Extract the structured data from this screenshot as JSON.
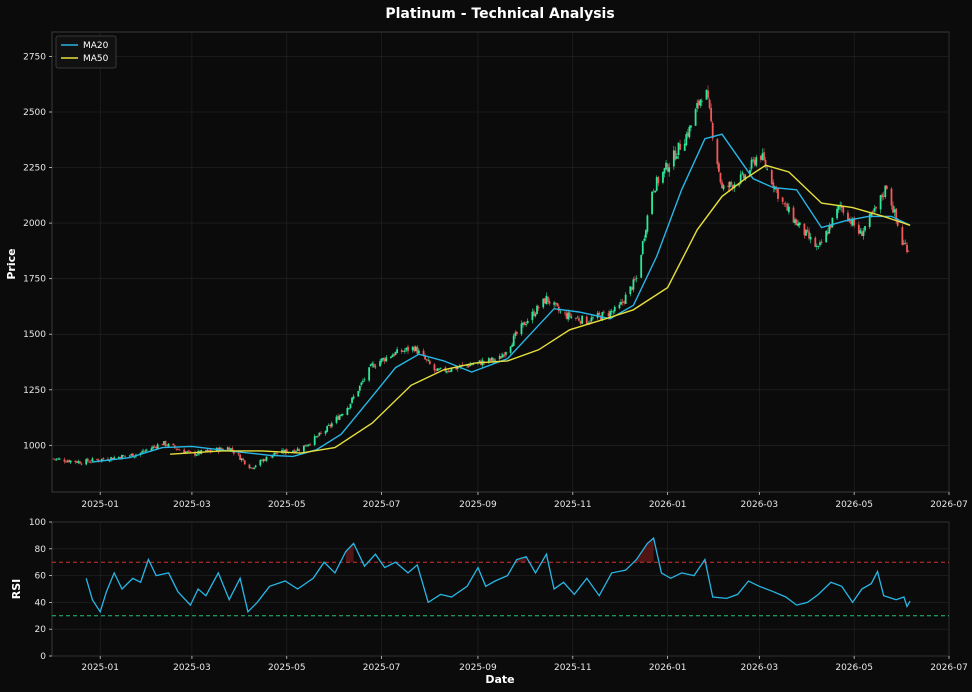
{
  "chart_data": [
    {
      "type": "candlestick",
      "title": "Platinum - Technical Analysis",
      "xlabel": "",
      "ylabel": "Price",
      "ylim": [
        790,
        2860
      ],
      "yticks": [
        1000,
        1250,
        1500,
        1750,
        2000,
        2250,
        2500,
        2750
      ],
      "grid": true,
      "legend_position": "top-left",
      "x_start": "2024-12-01",
      "x_end": "2026-07-01",
      "xticks": [
        "2025-01",
        "2025-03",
        "2025-05",
        "2025-07",
        "2025-09",
        "2025-11",
        "2026-01",
        "2026-03",
        "2026-05",
        "2026-07"
      ],
      "xtick_dates": [
        "2025-01-01",
        "2025-03-01",
        "2025-05-01",
        "2025-07-01",
        "2025-09-01",
        "2025-11-01",
        "2026-01-01",
        "2026-03-01",
        "2026-05-01",
        "2026-07-01"
      ],
      "price_anchors": [
        [
          "2024-12-01",
          940
        ],
        [
          "2024-12-20",
          925
        ],
        [
          "2025-01-05",
          940
        ],
        [
          "2025-01-25",
          960
        ],
        [
          "2025-02-10",
          1010
        ],
        [
          "2025-03-01",
          960
        ],
        [
          "2025-03-25",
          990
        ],
        [
          "2025-04-08",
          900
        ],
        [
          "2025-04-22",
          960
        ],
        [
          "2025-05-10",
          985
        ],
        [
          "2025-05-25",
          1060
        ],
        [
          "2025-06-10",
          1180
        ],
        [
          "2025-06-25",
          1360
        ],
        [
          "2025-07-08",
          1410
        ],
        [
          "2025-07-22",
          1440
        ],
        [
          "2025-08-05",
          1330
        ],
        [
          "2025-08-25",
          1360
        ],
        [
          "2025-09-15",
          1390
        ],
        [
          "2025-10-01",
          1550
        ],
        [
          "2025-10-15",
          1660
        ],
        [
          "2025-10-25",
          1590
        ],
        [
          "2025-11-10",
          1560
        ],
        [
          "2025-11-30",
          1610
        ],
        [
          "2025-12-12",
          1750
        ],
        [
          "2025-12-22",
          2150
        ],
        [
          "2026-01-05",
          2300
        ],
        [
          "2026-01-15",
          2420
        ],
        [
          "2026-01-25",
          2620
        ],
        [
          "2026-02-05",
          2150
        ],
        [
          "2026-02-20",
          2210
        ],
        [
          "2026-03-01",
          2320
        ],
        [
          "2026-03-15",
          2100
        ],
        [
          "2026-03-25",
          2000
        ],
        [
          "2026-04-08",
          1880
        ],
        [
          "2026-04-22",
          2080
        ],
        [
          "2026-05-05",
          1950
        ],
        [
          "2026-05-15",
          2060
        ],
        [
          "2026-05-22",
          2170
        ],
        [
          "2026-06-01",
          1910
        ],
        [
          "2026-06-06",
          1880
        ]
      ],
      "series": [
        {
          "name": "MA20",
          "color": "#29b6e6",
          "values": [
            [
              "2024-12-27",
              925
            ],
            [
              "2025-01-20",
              945
            ],
            [
              "2025-02-10",
              990
            ],
            [
              "2025-03-01",
              995
            ],
            [
              "2025-03-25",
              975
            ],
            [
              "2025-04-20",
              955
            ],
            [
              "2025-05-05",
              950
            ],
            [
              "2025-05-20",
              980
            ],
            [
              "2025-06-05",
              1050
            ],
            [
              "2025-06-25",
              1220
            ],
            [
              "2025-07-10",
              1350
            ],
            [
              "2025-07-25",
              1410
            ],
            [
              "2025-08-10",
              1380
            ],
            [
              "2025-08-28",
              1330
            ],
            [
              "2025-09-20",
              1390
            ],
            [
              "2025-10-10",
              1540
            ],
            [
              "2025-10-20",
              1615
            ],
            [
              "2025-11-05",
              1600
            ],
            [
              "2025-11-25",
              1570
            ],
            [
              "2025-12-10",
              1630
            ],
            [
              "2025-12-25",
              1850
            ],
            [
              "2026-01-10",
              2150
            ],
            [
              "2026-01-25",
              2380
            ],
            [
              "2026-02-05",
              2400
            ],
            [
              "2026-02-25",
              2200
            ],
            [
              "2026-03-10",
              2160
            ],
            [
              "2026-03-25",
              2150
            ],
            [
              "2026-04-10",
              1980
            ],
            [
              "2026-04-25",
              2010
            ],
            [
              "2026-05-10",
              2030
            ],
            [
              "2026-05-25",
              2030
            ],
            [
              "2026-06-06",
              1990
            ]
          ]
        },
        {
          "name": "MA50",
          "color": "#e6df3c",
          "values": [
            [
              "2025-02-15",
              960
            ],
            [
              "2025-03-20",
              975
            ],
            [
              "2025-04-15",
              975
            ],
            [
              "2025-05-10",
              965
            ],
            [
              "2025-06-01",
              990
            ],
            [
              "2025-06-25",
              1100
            ],
            [
              "2025-07-20",
              1270
            ],
            [
              "2025-08-10",
              1340
            ],
            [
              "2025-08-30",
              1370
            ],
            [
              "2025-09-20",
              1380
            ],
            [
              "2025-10-10",
              1430
            ],
            [
              "2025-10-30",
              1520
            ],
            [
              "2025-11-20",
              1565
            ],
            [
              "2025-12-10",
              1610
            ],
            [
              "2026-01-01",
              1710
            ],
            [
              "2026-01-20",
              1970
            ],
            [
              "2026-02-05",
              2120
            ],
            [
              "2026-02-20",
              2200
            ],
            [
              "2026-03-05",
              2260
            ],
            [
              "2026-03-20",
              2230
            ],
            [
              "2026-04-10",
              2090
            ],
            [
              "2026-04-30",
              2070
            ],
            [
              "2026-05-20",
              2030
            ],
            [
              "2026-06-06",
              1990
            ]
          ]
        }
      ]
    },
    {
      "type": "line",
      "title": "",
      "xlabel": "Date",
      "ylabel": "RSI",
      "ylim": [
        0,
        100
      ],
      "yticks": [
        0,
        20,
        40,
        60,
        80,
        100
      ],
      "grid": true,
      "reference_lines": [
        {
          "value": 70,
          "color": "#cc3333"
        },
        {
          "value": 30,
          "color": "#27c07a"
        }
      ],
      "xticks": [
        "2025-01",
        "2025-03",
        "2025-05",
        "2025-07",
        "2025-09",
        "2025-11",
        "2026-01",
        "2026-03",
        "2026-05",
        "2026-07"
      ],
      "xtick_dates": [
        "2025-01-01",
        "2025-03-01",
        "2025-05-01",
        "2025-07-01",
        "2025-09-01",
        "2025-11-01",
        "2026-01-01",
        "2026-03-01",
        "2026-05-01",
        "2026-07-01"
      ],
      "series": [
        {
          "name": "RSI",
          "color": "#29b6e6",
          "values": [
            [
              "2024-12-23",
              58
            ],
            [
              "2024-12-27",
              42
            ],
            [
              "2025-01-01",
              33
            ],
            [
              "2025-01-05",
              48
            ],
            [
              "2025-01-10",
              62
            ],
            [
              "2025-01-15",
              50
            ],
            [
              "2025-01-22",
              58
            ],
            [
              "2025-01-27",
              55
            ],
            [
              "2025-02-01",
              72
            ],
            [
              "2025-02-06",
              60
            ],
            [
              "2025-02-14",
              62
            ],
            [
              "2025-02-20",
              48
            ],
            [
              "2025-02-28",
              38
            ],
            [
              "2025-03-05",
              50
            ],
            [
              "2025-03-10",
              45
            ],
            [
              "2025-03-18",
              62
            ],
            [
              "2025-03-25",
              42
            ],
            [
              "2025-04-01",
              58
            ],
            [
              "2025-04-06",
              33
            ],
            [
              "2025-04-12",
              40
            ],
            [
              "2025-04-20",
              52
            ],
            [
              "2025-04-30",
              56
            ],
            [
              "2025-05-08",
              50
            ],
            [
              "2025-05-18",
              58
            ],
            [
              "2025-05-25",
              70
            ],
            [
              "2025-06-01",
              62
            ],
            [
              "2025-06-08",
              78
            ],
            [
              "2025-06-13",
              84
            ],
            [
              "2025-06-20",
              67
            ],
            [
              "2025-06-27",
              76
            ],
            [
              "2025-07-03",
              66
            ],
            [
              "2025-07-10",
              70
            ],
            [
              "2025-07-18",
              62
            ],
            [
              "2025-07-24",
              68
            ],
            [
              "2025-07-31",
              40
            ],
            [
              "2025-08-08",
              46
            ],
            [
              "2025-08-15",
              44
            ],
            [
              "2025-08-25",
              52
            ],
            [
              "2025-09-01",
              66
            ],
            [
              "2025-09-06",
              52
            ],
            [
              "2025-09-12",
              56
            ],
            [
              "2025-09-20",
              60
            ],
            [
              "2025-09-26",
              72
            ],
            [
              "2025-10-02",
              74
            ],
            [
              "2025-10-08",
              62
            ],
            [
              "2025-10-15",
              76
            ],
            [
              "2025-10-20",
              50
            ],
            [
              "2025-10-26",
              55
            ],
            [
              "2025-11-02",
              46
            ],
            [
              "2025-11-10",
              58
            ],
            [
              "2025-11-18",
              45
            ],
            [
              "2025-11-26",
              62
            ],
            [
              "2025-12-05",
              64
            ],
            [
              "2025-12-12",
              72
            ],
            [
              "2025-12-19",
              84
            ],
            [
              "2025-12-23",
              88
            ],
            [
              "2025-12-28",
              62
            ],
            [
              "2026-01-03",
              58
            ],
            [
              "2026-01-10",
              62
            ],
            [
              "2026-01-18",
              60
            ],
            [
              "2026-01-25",
              72
            ],
            [
              "2026-01-30",
              44
            ],
            [
              "2026-02-08",
              43
            ],
            [
              "2026-02-15",
              46
            ],
            [
              "2026-02-22",
              56
            ],
            [
              "2026-03-01",
              52
            ],
            [
              "2026-03-10",
              48
            ],
            [
              "2026-03-18",
              44
            ],
            [
              "2026-03-25",
              38
            ],
            [
              "2026-04-01",
              40
            ],
            [
              "2026-04-08",
              46
            ],
            [
              "2026-04-16",
              55
            ],
            [
              "2026-04-23",
              52
            ],
            [
              "2026-04-30",
              40
            ],
            [
              "2026-05-06",
              50
            ],
            [
              "2026-05-12",
              54
            ],
            [
              "2026-05-16",
              63
            ],
            [
              "2026-05-20",
              45
            ],
            [
              "2026-05-28",
              42
            ],
            [
              "2026-06-02",
              44
            ],
            [
              "2026-06-04",
              37
            ],
            [
              "2026-06-06",
              41
            ]
          ]
        }
      ]
    }
  ]
}
